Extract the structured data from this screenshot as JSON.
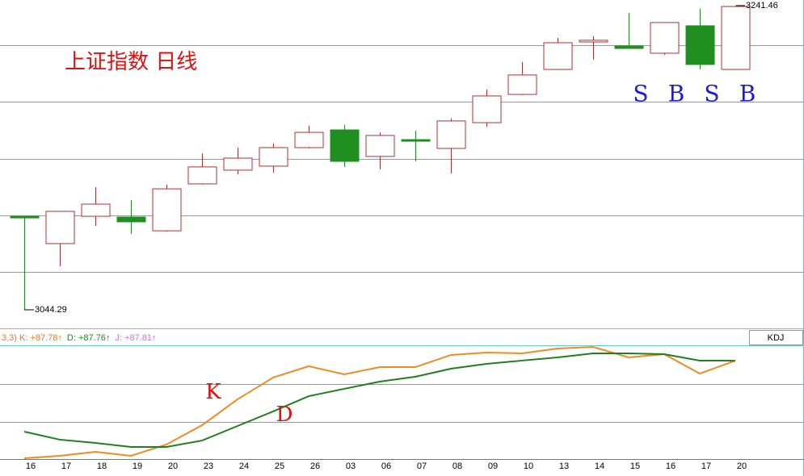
{
  "chart_data": [
    {
      "type": "candlestick",
      "title": "上证指数  日线",
      "categories": [
        "16",
        "17",
        "18",
        "19",
        "20",
        "23",
        "24",
        "25",
        "26",
        "03",
        "06",
        "07",
        "08",
        "09",
        "10",
        "13",
        "14",
        "15",
        "16",
        "17",
        "20"
      ],
      "open": [
        3104.9,
        3087.2,
        3104.9,
        3104.4,
        3095.5,
        3125.9,
        3134.8,
        3137.4,
        3149.4,
        3160.9,
        3143.7,
        3154.6,
        3148.9,
        3165.6,
        3183.9,
        3200.1,
        3217.9,
        3215.3,
        3210.6,
        3228.4,
        3200.1
      ],
      "high": [
        3104.9,
        3108.1,
        3123.8,
        3115.4,
        3125.4,
        3145.7,
        3149.4,
        3152.0,
        3163.5,
        3164.1,
        3159.3,
        3160.4,
        3168.2,
        3187.1,
        3204.9,
        3220.5,
        3221.6,
        3236.7,
        3230.5,
        3239.4,
        3241.46
      ],
      "low": [
        3044.29,
        3072.5,
        3098.7,
        3093.5,
        3095.0,
        3125.4,
        3132.1,
        3133.2,
        3148.9,
        3136.9,
        3135.3,
        3140.5,
        3132.7,
        3163.0,
        3183.4,
        3199.8,
        3206.4,
        3213.7,
        3209.6,
        3200.1,
        3200.1
      ],
      "close": [
        3103.9,
        3108.1,
        3112.8,
        3101.3,
        3122.7,
        3136.9,
        3142.6,
        3149.4,
        3159.3,
        3140.5,
        3157.3,
        3153.6,
        3166.7,
        3182.9,
        3196.5,
        3217.4,
        3219.0,
        3213.7,
        3230.5,
        3203.3,
        3240.9
      ],
      "up_color": "#b03030",
      "down_color": "#1f8f1f",
      "ylim": [
        3033.3,
        3245.1
      ],
      "signals": [
        "S",
        "B",
        "S",
        "B"
      ],
      "signal_color": "#1c1cd0"
    },
    {
      "type": "line",
      "indicator": "KDJ",
      "legend": [
        {
          "text": "3,3) K: +87.78↑",
          "color": "#e8782a"
        },
        {
          "text": "D: +87.76↑",
          "color": "#1f8f1f"
        },
        {
          "text": "J: +87.81↑",
          "color": "#d070e0"
        }
      ],
      "series": [
        {
          "color": "#f08a24",
          "values": [
            1.4,
            3.6,
            7.1,
            3.6,
            13.6,
            30.7,
            53.6,
            72.9,
            82.9,
            75.7,
            82.1,
            82.1,
            92.9,
            95.0,
            94.3,
            98.6,
            100,
            90.7,
            93.6,
            76.4,
            87.78
          ]
        },
        {
          "color": "#1f7f1f",
          "values": [
            25.0,
            17.9,
            15.0,
            11.4,
            11.4,
            17.1,
            30.0,
            42.9,
            56.4,
            62.9,
            69.3,
            73.6,
            80.7,
            85.0,
            87.9,
            90.7,
            94.3,
            94.3,
            93.6,
            87.9,
            87.76
          ]
        }
      ],
      "annotations": [
        "K",
        "D"
      ],
      "annotation_color": "#e01010",
      "ylim": [
        0,
        100
      ]
    }
  ]
}
